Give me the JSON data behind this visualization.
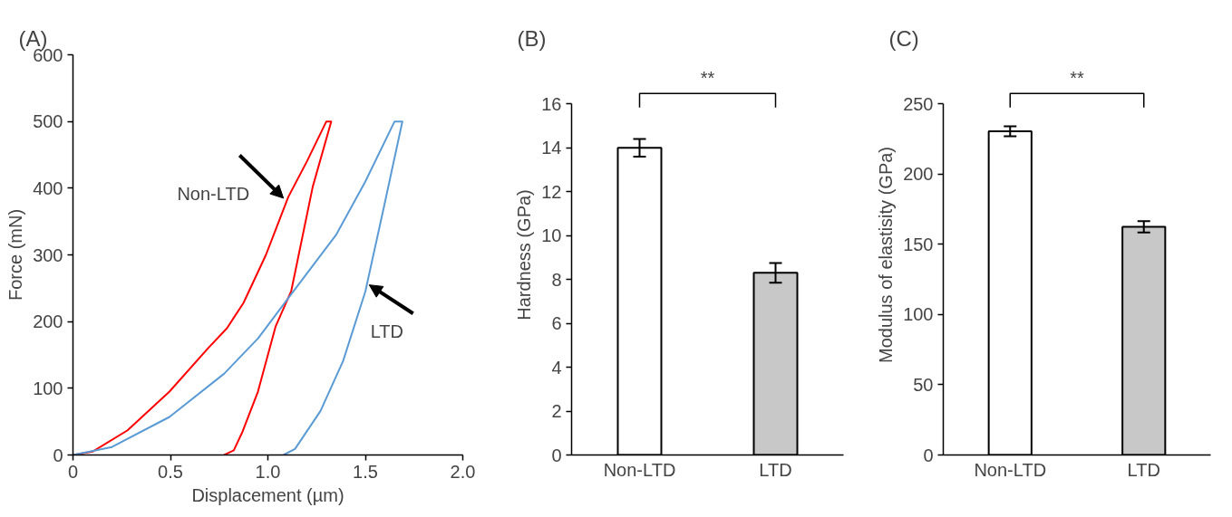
{
  "chart_data": [
    {
      "type": "line",
      "title": "(A)",
      "xlabel": "Displacement (µm)",
      "ylabel": "Force (mN)",
      "xlim": [
        0,
        2.0
      ],
      "ylim": [
        0,
        600
      ],
      "xticks": [
        0,
        0.5,
        {
          "value": 1.0,
          "label": "1.0"
        },
        1.5,
        {
          "value": 2.0,
          "label": "2.0"
        }
      ],
      "yticks": [
        0,
        100,
        200,
        300,
        400,
        500,
        600
      ],
      "grid": false,
      "marker": "none",
      "line_style": "solid",
      "series": [
        {
          "color": "#ff0000",
          "x": [
            0,
            0.1,
            0.28,
            0.495,
            0.693,
            0.79,
            0.875,
            0.99,
            1.105,
            1.2,
            1.3,
            1.325,
            1.23,
            1.12,
            1.04,
            0.949,
            0.87,
            0.825,
            0.776
          ],
          "values": [
            0,
            5,
            37,
            95,
            160,
            190,
            228,
            300,
            387,
            440,
            500,
            500,
            402,
            246,
            193,
            95,
            35,
            7,
            0
          ]
        },
        {
          "color": "#5b9bd5",
          "x": [
            0,
            0.2,
            0.495,
            0.776,
            0.95,
            1.12,
            1.35,
            1.5,
            1.65,
            1.69,
            1.6,
            1.5,
            1.386,
            1.27,
            1.139,
            1.08
          ],
          "values": [
            0,
            12,
            57,
            122,
            175,
            241,
            330,
            410,
            500,
            500,
            378,
            245,
            141,
            66,
            9,
            0
          ]
        }
      ],
      "annotations": [
        {
          "text": "Non-LTD",
          "x": 1.08,
          "y": 385
        },
        {
          "text": "LTD",
          "x": 1.52,
          "y": 255
        }
      ]
    },
    {
      "type": "bar",
      "title": "(B)",
      "ylabel": "Hardness (GPa)",
      "categories": [
        "Non-LTD",
        "LTD"
      ],
      "values": [
        14.0,
        8.3
      ],
      "errors": [
        0.4,
        0.45
      ],
      "colors": [
        "#ffffff",
        "#c8c8c8"
      ],
      "ylim": [
        0,
        16
      ],
      "yticks": [
        0,
        2,
        4,
        6,
        8,
        10,
        12,
        14,
        16
      ],
      "grid": false,
      "annotations": [
        "**"
      ]
    },
    {
      "type": "bar",
      "title": "(C)",
      "ylabel": "Modulus of elastisity (GPa)",
      "categories": [
        "Non-LTD",
        "LTD"
      ],
      "values": [
        230.5,
        162.5
      ],
      "errors": [
        3.5,
        4
      ],
      "colors": [
        "#ffffff",
        "#c8c8c8"
      ],
      "ylim": [
        0,
        250
      ],
      "yticks": [
        0,
        50,
        100,
        150,
        200,
        250
      ],
      "grid": false,
      "annotations": [
        "**"
      ]
    }
  ]
}
